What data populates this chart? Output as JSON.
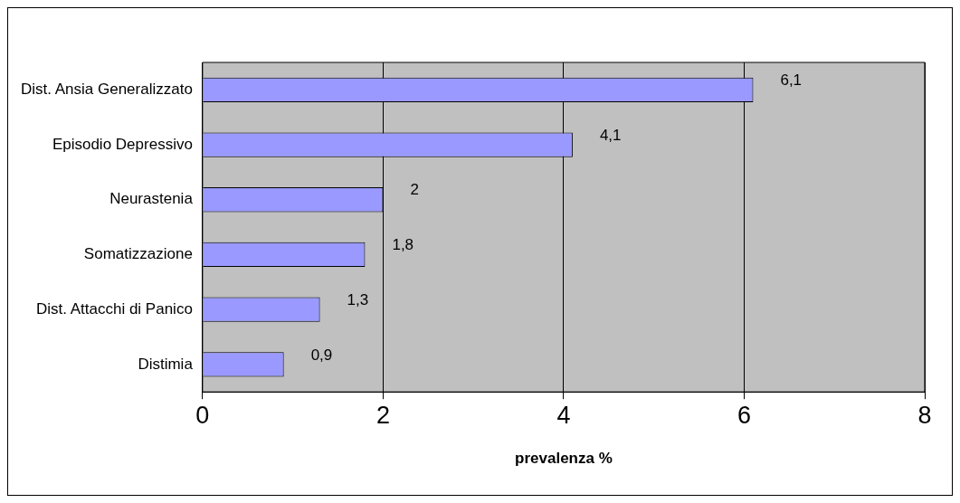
{
  "chart_data": {
    "type": "bar",
    "orientation": "horizontal",
    "xlabel": "prevalenza %",
    "categories": [
      "Dist. Ansia Generalizzato",
      "Episodio Depressivo",
      "Neurastenia",
      "Somatizzazione",
      "Dist. Attacchi di Panico",
      "Distimia"
    ],
    "values": [
      6.1,
      4.1,
      2,
      1.8,
      1.3,
      0.9
    ],
    "value_labels": [
      "6,1",
      "4,1",
      "2",
      "1,8",
      "1,3",
      "0,9"
    ],
    "color": "#9999ff",
    "xlim": [
      0,
      8
    ],
    "xticks": [
      0,
      2,
      4,
      6,
      8
    ],
    "grid": "x",
    "legend": false
  }
}
